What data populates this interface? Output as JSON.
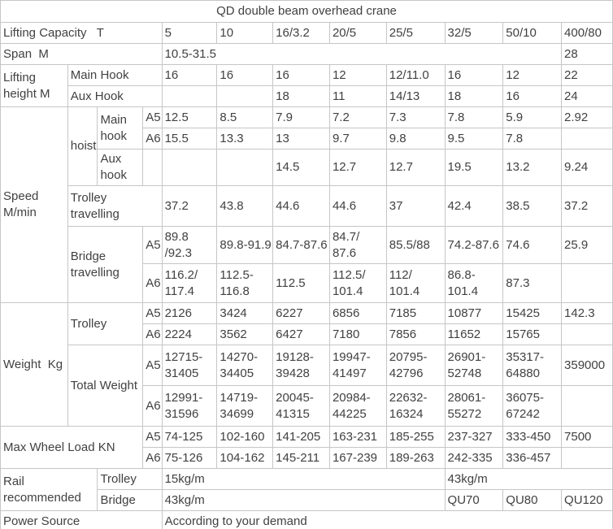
{
  "colors": {
    "text": "#414141",
    "border": "#c6c6c6",
    "background": "#ffffff"
  },
  "chart_data": {
    "type": "table",
    "title": "QD double beam overhead crane",
    "capacity_columns": [
      "5",
      "10",
      "16/3.2",
      "20/5",
      "25/5",
      "32/5",
      "50/10",
      "400/80"
    ],
    "rows": [
      {
        "cells": [
          {
            "t": "QD double beam overhead crane",
            "cs": 12,
            "name": "table-title"
          }
        ]
      },
      {
        "cells": [
          {
            "t": "Lifting Capacity   T",
            "cs": 4,
            "name": "row-label-lifting-capacity"
          },
          {
            "t": "5",
            "name": "capacity-header"
          },
          {
            "t": "10",
            "name": "capacity-header"
          },
          {
            "t": "16/3.2",
            "name": "capacity-header"
          },
          {
            "t": "20/5",
            "name": "capacity-header"
          },
          {
            "t": "25/5",
            "name": "capacity-header"
          },
          {
            "t": "32/5",
            "name": "capacity-header"
          },
          {
            "t": "50/10",
            "name": "capacity-header"
          },
          {
            "t": "400/80",
            "name": "capacity-header"
          }
        ]
      },
      {
        "cells": [
          {
            "t": "Span  M",
            "cs": 4,
            "name": "row-label-span"
          },
          {
            "t": "10.5-31.5",
            "cs": 7
          },
          {
            "t": "28"
          }
        ]
      },
      {
        "cells": [
          {
            "t": "Lifting\nheight M",
            "rs": 2,
            "name": "row-label-lifting-height"
          },
          {
            "t": "Main Hook",
            "cs": 3,
            "name": "row-label-main-hook"
          },
          {
            "t": "16"
          },
          {
            "t": "16"
          },
          {
            "t": "16"
          },
          {
            "t": "12"
          },
          {
            "t": "12/11.0"
          },
          {
            "t": "16"
          },
          {
            "t": "12"
          },
          {
            "t": "22"
          }
        ]
      },
      {
        "cells": [
          {
            "t": "Aux Hook",
            "cs": 3,
            "name": "row-label-aux-hook"
          },
          {
            "t": ""
          },
          {
            "t": ""
          },
          {
            "t": "18"
          },
          {
            "t": "11"
          },
          {
            "t": "14/13"
          },
          {
            "t": "18"
          },
          {
            "t": "16"
          },
          {
            "t": "24"
          }
        ]
      },
      {
        "cells": [
          {
            "t": "Speed\nM/min",
            "rs": 6,
            "name": "row-label-speed"
          },
          {
            "t": "hoist",
            "rs": 3,
            "name": "row-label-hoist"
          },
          {
            "t": "Main\nhook",
            "rs": 2,
            "name": "row-label-hoist-main-hook"
          },
          {
            "t": "A5",
            "name": "duty-class-a5"
          },
          {
            "t": "12.5"
          },
          {
            "t": "8.5"
          },
          {
            "t": "7.9"
          },
          {
            "t": "7.2"
          },
          {
            "t": "7.3"
          },
          {
            "t": "7.8"
          },
          {
            "t": "5.9"
          },
          {
            "t": "2.92"
          }
        ]
      },
      {
        "cells": [
          {
            "t": "A6",
            "name": "duty-class-a6"
          },
          {
            "t": "15.5"
          },
          {
            "t": "13.3"
          },
          {
            "t": "13"
          },
          {
            "t": "9.7"
          },
          {
            "t": "9.8"
          },
          {
            "t": "9.5"
          },
          {
            "t": "7.8"
          },
          {
            "t": ""
          }
        ]
      },
      {
        "cells": [
          {
            "t": "Aux\nhook",
            "name": "row-label-hoist-aux-hook"
          },
          {
            "t": ""
          },
          {
            "t": ""
          },
          {
            "t": ""
          },
          {
            "t": "14.5"
          },
          {
            "t": "12.7"
          },
          {
            "t": "12.7"
          },
          {
            "t": "19.5"
          },
          {
            "t": "13.2"
          },
          {
            "t": "9.24"
          }
        ]
      },
      {
        "cells": [
          {
            "t": "Trolley\ntravelling",
            "cs": 3,
            "name": "row-label-trolley-travelling"
          },
          {
            "t": "37.2"
          },
          {
            "t": "43.8"
          },
          {
            "t": "44.6"
          },
          {
            "t": "44.6"
          },
          {
            "t": "37"
          },
          {
            "t": "42.4"
          },
          {
            "t": "38.5"
          },
          {
            "t": "37.2"
          }
        ]
      },
      {
        "cells": [
          {
            "t": "Bridge\ntravelling",
            "cs": 2,
            "rs": 2,
            "name": "row-label-bridge-travelling"
          },
          {
            "t": "A5",
            "name": "duty-class-a5"
          },
          {
            "t": "89.8\n/92.3"
          },
          {
            "t": "89.8-91.9"
          },
          {
            "t": "84.7-87.6"
          },
          {
            "t": "84.7/\n87.6"
          },
          {
            "t": "85.5/88"
          },
          {
            "t": "74.2-87.6"
          },
          {
            "t": "74.6"
          },
          {
            "t": "25.9"
          }
        ]
      },
      {
        "cells": [
          {
            "t": "A6",
            "name": "duty-class-a6"
          },
          {
            "t": "116.2/\n117.4"
          },
          {
            "t": "112.5-\n116.8"
          },
          {
            "t": "112.5"
          },
          {
            "t": "112.5/\n101.4"
          },
          {
            "t": "112/\n101.4"
          },
          {
            "t": "86.8-\n101.4"
          },
          {
            "t": "87.3"
          },
          {
            "t": ""
          }
        ]
      },
      {
        "cells": [
          {
            "t": "Weight  Kg",
            "rs": 4,
            "name": "row-label-weight"
          },
          {
            "t": "Trolley",
            "cs": 2,
            "rs": 2,
            "name": "row-label-weight-trolley"
          },
          {
            "t": "A5",
            "name": "duty-class-a5"
          },
          {
            "t": "2126"
          },
          {
            "t": "3424"
          },
          {
            "t": "6227"
          },
          {
            "t": "6856"
          },
          {
            "t": "7185"
          },
          {
            "t": "10877"
          },
          {
            "t": "15425"
          },
          {
            "t": "142.3"
          }
        ]
      },
      {
        "cells": [
          {
            "t": "A6",
            "name": "duty-class-a6"
          },
          {
            "t": "2224"
          },
          {
            "t": "3562"
          },
          {
            "t": "6427"
          },
          {
            "t": "7180"
          },
          {
            "t": "7856"
          },
          {
            "t": "11652"
          },
          {
            "t": "15765"
          },
          {
            "t": ""
          }
        ]
      },
      {
        "cells": [
          {
            "t": "Total Weight",
            "cs": 2,
            "rs": 2,
            "name": "row-label-total-weight"
          },
          {
            "t": "A5",
            "name": "duty-class-a5"
          },
          {
            "t": "12715-\n31405"
          },
          {
            "t": "14270-\n34405"
          },
          {
            "t": "19128-\n39428"
          },
          {
            "t": "19947-\n41497"
          },
          {
            "t": "20795-\n42796"
          },
          {
            "t": "26901-\n52748"
          },
          {
            "t": "35317-\n64880"
          },
          {
            "t": "359000"
          }
        ]
      },
      {
        "cells": [
          {
            "t": "A6",
            "name": "duty-class-a6"
          },
          {
            "t": "12991-\n31596"
          },
          {
            "t": "14719-\n34699"
          },
          {
            "t": "20045-\n41315"
          },
          {
            "t": "20984-\n44225"
          },
          {
            "t": "22632-\n16324"
          },
          {
            "t": "28061-\n55272"
          },
          {
            "t": "36075-\n67242"
          },
          {
            "t": ""
          }
        ]
      },
      {
        "cells": [
          {
            "t": "Max Wheel Load KN",
            "cs": 3,
            "rs": 2,
            "name": "row-label-max-wheel-load"
          },
          {
            "t": "A5",
            "name": "duty-class-a5"
          },
          {
            "t": "74-125"
          },
          {
            "t": "102-160"
          },
          {
            "t": "141-205"
          },
          {
            "t": "163-231"
          },
          {
            "t": "185-255"
          },
          {
            "t": "237-327"
          },
          {
            "t": "333-450"
          },
          {
            "t": "7500"
          }
        ]
      },
      {
        "cells": [
          {
            "t": "A6",
            "name": "duty-class-a6"
          },
          {
            "t": "75-126"
          },
          {
            "t": "104-162"
          },
          {
            "t": "145-211"
          },
          {
            "t": "167-239"
          },
          {
            "t": "189-263"
          },
          {
            "t": "242-335"
          },
          {
            "t": "336-457"
          },
          {
            "t": ""
          }
        ]
      },
      {
        "cells": [
          {
            "t": "Rail\nrecommended",
            "cs": 2,
            "rs": 2,
            "name": "row-label-rail-recommended"
          },
          {
            "t": "Trolley",
            "cs": 2,
            "name": "row-label-rail-trolley"
          },
          {
            "t": "15kg/m",
            "cs": 5
          },
          {
            "t": "43kg/m",
            "cs": 3
          }
        ]
      },
      {
        "cells": [
          {
            "t": "Bridge",
            "cs": 2,
            "name": "row-label-rail-bridge"
          },
          {
            "t": "43kg/m",
            "cs": 5
          },
          {
            "t": "QU70"
          },
          {
            "t": "QU80"
          },
          {
            "t": "QU120"
          }
        ]
      },
      {
        "cells": [
          {
            "t": "Power Source",
            "cs": 4,
            "name": "row-label-power-source"
          },
          {
            "t": "According to your demand",
            "cs": 8
          }
        ]
      }
    ]
  }
}
